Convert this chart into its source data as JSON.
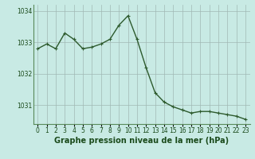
{
  "x": [
    0,
    1,
    2,
    3,
    4,
    5,
    6,
    7,
    8,
    9,
    10,
    11,
    12,
    13,
    14,
    15,
    16,
    17,
    18,
    19,
    20,
    21,
    22,
    23
  ],
  "y": [
    1032.8,
    1032.95,
    1032.8,
    1033.3,
    1033.1,
    1032.8,
    1032.85,
    1032.95,
    1033.1,
    1033.55,
    1033.85,
    1033.1,
    1032.2,
    1031.4,
    1031.1,
    1030.95,
    1030.85,
    1030.75,
    1030.8,
    1030.8,
    1030.75,
    1030.7,
    1030.65,
    1030.55
  ],
  "line_color": "#2d5a2d",
  "marker": "+",
  "marker_size": 3,
  "line_width": 1.0,
  "bg_color": "#c8eae4",
  "plot_bg_color": "#c8eae4",
  "grid_color": "#a0b8b4",
  "xlabel": "Graphe pression niveau de la mer (hPa)",
  "xlabel_fontsize": 7,
  "xlabel_color": "#1a4a1a",
  "tick_color": "#1a4a1a",
  "ylim": [
    1030.4,
    1034.2
  ],
  "yticks": [
    1031,
    1032,
    1033,
    1034
  ],
  "xticks": [
    0,
    1,
    2,
    3,
    4,
    5,
    6,
    7,
    8,
    9,
    10,
    11,
    12,
    13,
    14,
    15,
    16,
    17,
    18,
    19,
    20,
    21,
    22,
    23
  ],
  "xtick_labels": [
    "0",
    "1",
    "2",
    "3",
    "4",
    "5",
    "6",
    "7",
    "8",
    "9",
    "10",
    "11",
    "12",
    "13",
    "14",
    "15",
    "16",
    "17",
    "18",
    "19",
    "20",
    "21",
    "22",
    "23"
  ],
  "tick_fontsize": 5.5,
  "spine_color": "#5a8a5a"
}
